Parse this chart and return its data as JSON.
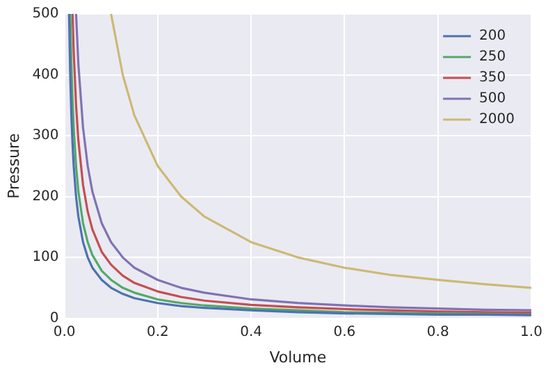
{
  "chart_data": {
    "type": "line",
    "xlabel": "Volume",
    "ylabel": "Pressure",
    "xlim": [
      0,
      1
    ],
    "ylim": [
      0,
      500
    ],
    "xticks": [
      {
        "value": 0,
        "label": "0.0"
      },
      {
        "value": 0.2,
        "label": "0.2"
      },
      {
        "value": 0.4,
        "label": "0.4"
      },
      {
        "value": 0.6,
        "label": "0.6"
      },
      {
        "value": 0.8,
        "label": "0.8"
      },
      {
        "value": 1,
        "label": "1.0"
      }
    ],
    "yticks": [
      0,
      100,
      200,
      300,
      400,
      500
    ],
    "grid": true,
    "legend": "top right",
    "marker": "none",
    "line_style": "solid",
    "series": [
      {
        "name": "200",
        "color": "#4c72b0",
        "x": [
          0.01,
          0.0125,
          0.015,
          0.0175,
          0.02,
          0.025,
          0.03,
          0.04,
          0.05,
          0.06,
          0.08,
          0.1,
          0.125,
          0.15,
          0.2,
          0.25,
          0.3,
          0.4,
          0.5,
          0.6,
          0.7,
          0.8,
          0.9,
          1
        ],
        "values": [
          500,
          400,
          333,
          286,
          250,
          200,
          167,
          125,
          100,
          83,
          63,
          50,
          40,
          33,
          25,
          20,
          17,
          13,
          10,
          8,
          7,
          6,
          6,
          5
        ]
      },
      {
        "name": "250",
        "color": "#55a868",
        "x": [
          0.0125,
          0.015,
          0.0175,
          0.02,
          0.025,
          0.03,
          0.04,
          0.05,
          0.06,
          0.08,
          0.1,
          0.125,
          0.15,
          0.2,
          0.25,
          0.3,
          0.4,
          0.5,
          0.6,
          0.7,
          0.8,
          0.9,
          1
        ],
        "values": [
          500,
          417,
          357,
          313,
          250,
          208,
          156,
          125,
          104,
          78,
          63,
          50,
          42,
          31,
          25,
          21,
          16,
          13,
          10,
          9,
          8,
          7,
          6
        ]
      },
      {
        "name": "350",
        "color": "#c44e52",
        "x": [
          0.0175,
          0.02,
          0.025,
          0.03,
          0.04,
          0.05,
          0.06,
          0.08,
          0.1,
          0.125,
          0.15,
          0.2,
          0.25,
          0.3,
          0.4,
          0.5,
          0.6,
          0.7,
          0.8,
          0.9,
          1
        ],
        "values": [
          500,
          438,
          350,
          292,
          219,
          175,
          146,
          109,
          88,
          70,
          58,
          44,
          35,
          29,
          22,
          18,
          15,
          13,
          11,
          10,
          9
        ]
      },
      {
        "name": "500",
        "color": "#8172b2",
        "x": [
          0.025,
          0.03,
          0.04,
          0.05,
          0.06,
          0.08,
          0.1,
          0.125,
          0.15,
          0.2,
          0.25,
          0.3,
          0.4,
          0.5,
          0.6,
          0.7,
          0.8,
          0.9,
          1
        ],
        "values": [
          500,
          417,
          313,
          250,
          208,
          156,
          125,
          100,
          83,
          63,
          50,
          42,
          31,
          25,
          21,
          18,
          16,
          14,
          13
        ]
      },
      {
        "name": "2000",
        "color": "#ccb974",
        "x": [
          0.1,
          0.125,
          0.15,
          0.2,
          0.25,
          0.3,
          0.4,
          0.5,
          0.6,
          0.7,
          0.8,
          0.9,
          1
        ],
        "values": [
          500,
          400,
          333,
          250,
          200,
          167,
          125,
          100,
          83,
          71,
          63,
          56,
          50
        ]
      }
    ]
  }
}
